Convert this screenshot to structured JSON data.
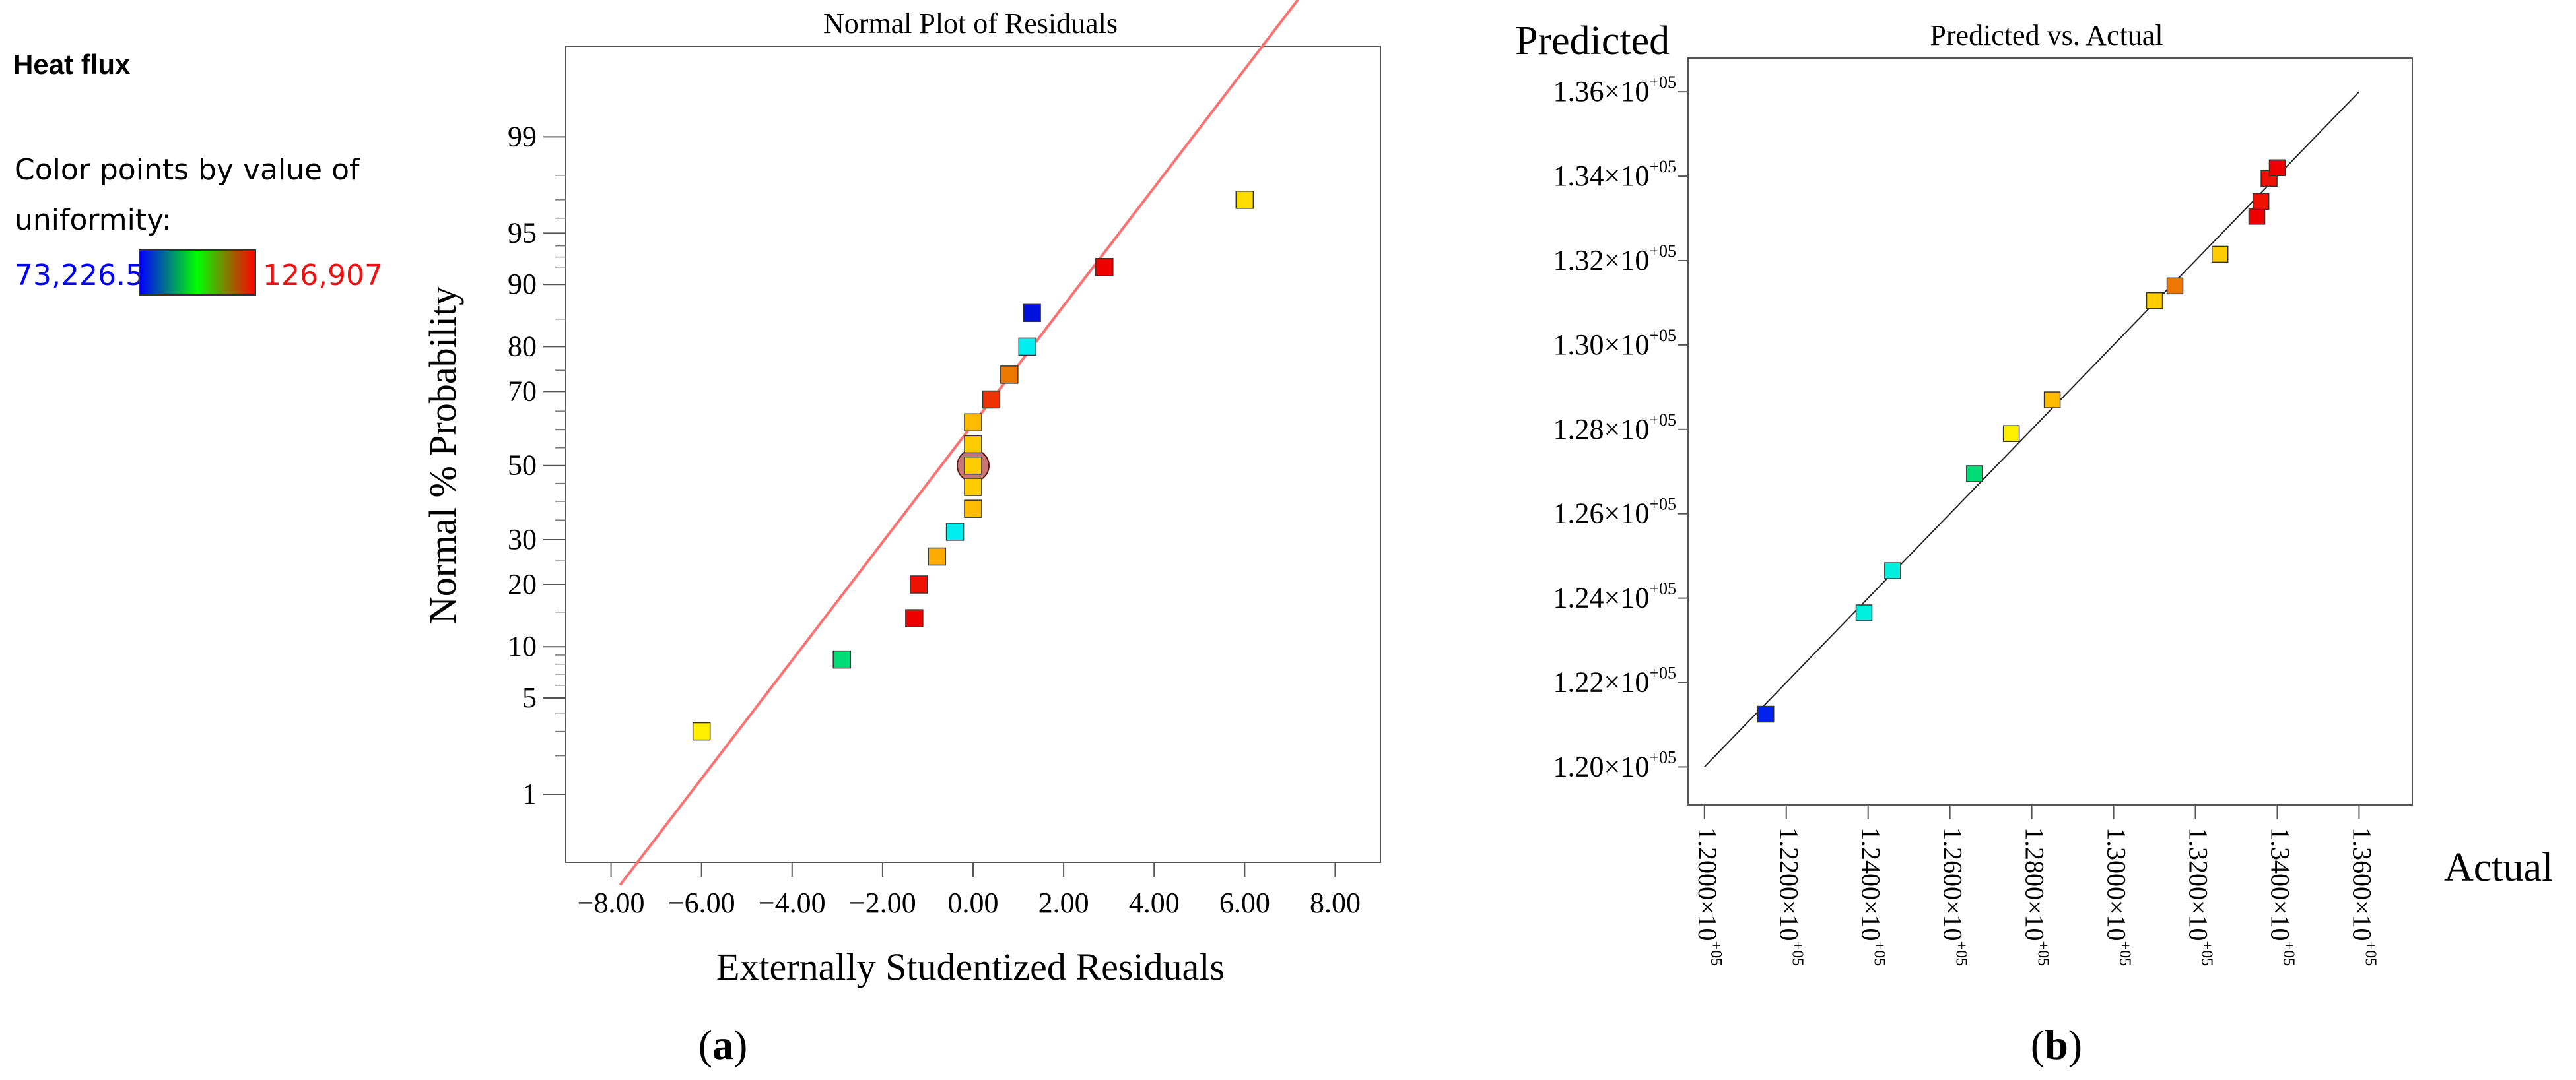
{
  "legend": {
    "title": "Heat flux",
    "line1": "Color points by value of",
    "line2": "uniformity:",
    "min_label": "73,226.5",
    "max_label": "126,907",
    "colors": [
      "#0000ff",
      "#00ff00",
      "#ff0000"
    ],
    "min_color": "#0000ff",
    "max_color": "#ee1111"
  },
  "chart_data": [
    {
      "type": "scatter",
      "title": "Normal Plot of Residuals",
      "xlabel": "Externally Studentized Residuals",
      "ylabel": "Normal % Probability",
      "panel_label": "a",
      "xlim": [
        -9.0,
        9.0
      ],
      "ylim_probability": [
        0.25,
        99.85
      ],
      "x_ticks": [
        -8,
        -6,
        -4,
        -2,
        0,
        2,
        4,
        6,
        8
      ],
      "x_tick_labels": [
        "−8.00",
        "−6.00",
        "−4.00",
        "−2.00",
        "0.00",
        "2.00",
        "4.00",
        "6.00",
        "8.00"
      ],
      "y_ticks": [
        1,
        5,
        10,
        20,
        30,
        50,
        70,
        80,
        90,
        95,
        99
      ],
      "y_tick_labels": [
        "1",
        "5",
        "10",
        "20",
        "30",
        "50",
        "70",
        "80",
        "90",
        "95",
        "99"
      ],
      "reference_line": {
        "color": "#ff7070",
        "points": [
          [
            -7.8,
            0.15
          ],
          [
            7.5,
            99.97
          ]
        ]
      },
      "highlight": {
        "x": 0.0,
        "y": 50,
        "color": "#b33a3a"
      },
      "points": [
        {
          "x": -6.0,
          "y": 3.0,
          "color": "#ffee00"
        },
        {
          "x": -2.9,
          "y": 8.5,
          "color": "#00dd77"
        },
        {
          "x": -1.3,
          "y": 14.0,
          "color": "#ee0000"
        },
        {
          "x": -1.2,
          "y": 20.0,
          "color": "#ee1100"
        },
        {
          "x": -0.8,
          "y": 26.0,
          "color": "#ffaa00"
        },
        {
          "x": -0.4,
          "y": 32.0,
          "color": "#00eeee"
        },
        {
          "x": 0.0,
          "y": 38.0,
          "color": "#ffbb00"
        },
        {
          "x": 0.0,
          "y": 44.0,
          "color": "#ffcc00"
        },
        {
          "x": 0.0,
          "y": 50.0,
          "color": "#ffcc00"
        },
        {
          "x": 0.0,
          "y": 56.0,
          "color": "#ffcc00"
        },
        {
          "x": 0.0,
          "y": 62.0,
          "color": "#ffbb00"
        },
        {
          "x": 0.4,
          "y": 68.0,
          "color": "#ee3300"
        },
        {
          "x": 0.8,
          "y": 74.0,
          "color": "#ee7700"
        },
        {
          "x": 1.2,
          "y": 80.0,
          "color": "#00eeee"
        },
        {
          "x": 1.3,
          "y": 86.0,
          "color": "#0011dd"
        },
        {
          "x": 2.9,
          "y": 92.0,
          "color": "#ee0000"
        },
        {
          "x": 6.0,
          "y": 97.0,
          "color": "#ffdd00"
        }
      ]
    },
    {
      "type": "scatter",
      "title": "Predicted vs. Actual",
      "xlabel": "Actual",
      "ylabel": "Predicted",
      "panel_label": "b",
      "xlim": [
        119600,
        137300
      ],
      "ylim": [
        119100,
        136800
      ],
      "x_ticks": [
        120000,
        122000,
        124000,
        126000,
        128000,
        130000,
        132000,
        134000,
        136000
      ],
      "x_tick_mantissas": [
        "1.2000",
        "1.2200",
        "1.2400",
        "1.2600",
        "1.2800",
        "1.3000",
        "1.3200",
        "1.3400",
        "1.3600"
      ],
      "x_tick_exponents": [
        "+05",
        "+05",
        "+05",
        "+05",
        "+05",
        "+05",
        "+05",
        "+05",
        "+05"
      ],
      "y_ticks": [
        120000,
        122000,
        124000,
        126000,
        128000,
        130000,
        132000,
        134000,
        136000
      ],
      "y_tick_mantissas": [
        "1.20",
        "1.22",
        "1.24",
        "1.26",
        "1.28",
        "1.30",
        "1.32",
        "1.34",
        "1.36"
      ],
      "y_tick_exponents": [
        "+05",
        "+05",
        "+05",
        "+05",
        "+05",
        "+05",
        "+05",
        "+05",
        "+05"
      ],
      "times_symbol": "×10",
      "reference_line": {
        "color": "#222222",
        "points": [
          [
            120000,
            120000
          ],
          [
            136000,
            136000
          ]
        ]
      },
      "points": [
        {
          "x": 121500,
          "y": 121250,
          "color": "#0022ee"
        },
        {
          "x": 123900,
          "y": 123650,
          "color": "#00eedd"
        },
        {
          "x": 124600,
          "y": 124650,
          "color": "#00eedd"
        },
        {
          "x": 126600,
          "y": 126950,
          "color": "#00dd77"
        },
        {
          "x": 127500,
          "y": 127900,
          "color": "#ffee00"
        },
        {
          "x": 128500,
          "y": 128700,
          "color": "#ffbb00"
        },
        {
          "x": 131000,
          "y": 131050,
          "color": "#ffcc00"
        },
        {
          "x": 131500,
          "y": 131400,
          "color": "#ee7700"
        },
        {
          "x": 132600,
          "y": 132150,
          "color": "#ffcc00"
        },
        {
          "x": 133500,
          "y": 133050,
          "color": "#ee0000"
        },
        {
          "x": 133600,
          "y": 133400,
          "color": "#ee1100"
        },
        {
          "x": 133800,
          "y": 133950,
          "color": "#ee1100"
        },
        {
          "x": 134000,
          "y": 134200,
          "color": "#ee0000"
        }
      ]
    }
  ]
}
